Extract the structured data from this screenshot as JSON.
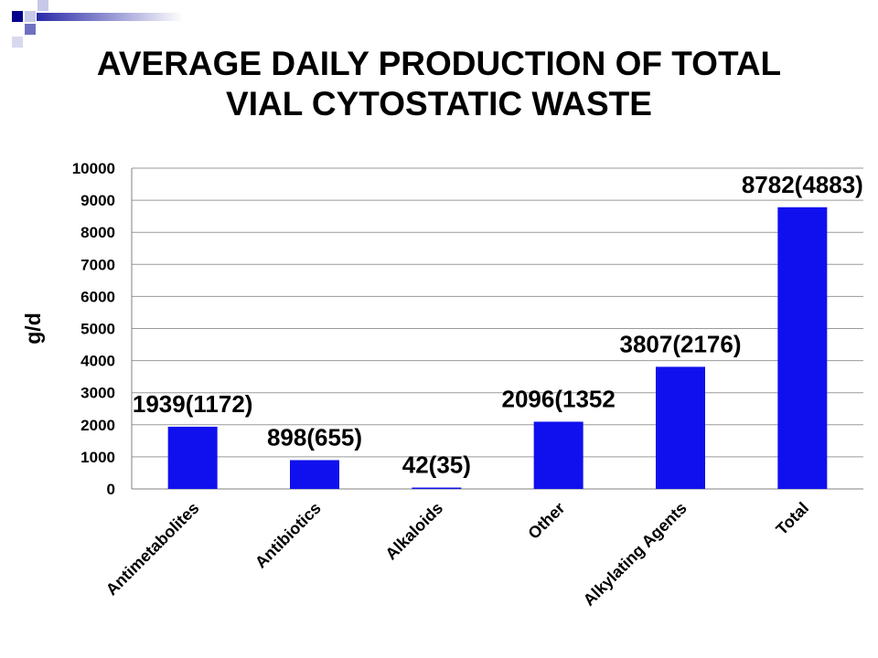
{
  "slide": {
    "title_line1": "AVERAGE DAILY PRODUCTION OF TOTAL",
    "title_line2": "VIAL CYTOSTATIC WASTE",
    "accent_color": "#0000a0"
  },
  "chart_data": {
    "type": "bar",
    "ylabel": "g/d",
    "xlabel": "",
    "ylim": [
      0,
      10000
    ],
    "yticks": [
      0,
      1000,
      2000,
      3000,
      4000,
      5000,
      6000,
      7000,
      8000,
      9000,
      10000
    ],
    "grid": true,
    "bar_color": "#1010ee",
    "categories": [
      "Antimetabolites",
      "Antibiotics",
      "Alkaloids",
      "Other",
      "Alkylating Agents",
      "Total"
    ],
    "values": [
      1939,
      898,
      42,
      2096,
      3807,
      8782
    ],
    "data_labels": [
      "1939(1172)",
      "898(655)",
      "42(35)",
      "2096(1352",
      "3807(2176)",
      "8782(4883)"
    ]
  }
}
